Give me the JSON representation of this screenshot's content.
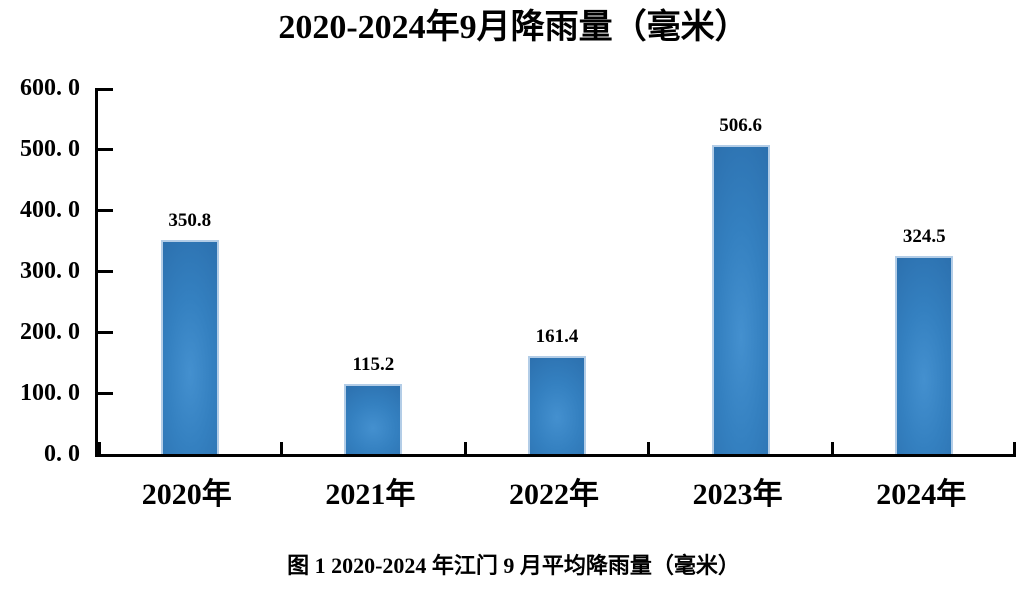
{
  "figure": {
    "background": "#ffffff",
    "caption": "图 1 2020-2024 年江门 9 月平均降雨量（毫米）"
  },
  "chart_data": {
    "type": "bar",
    "title": "2020-2024年9月降雨量（毫米）",
    "categories": [
      "2020年",
      "2021年",
      "2022年",
      "2023年",
      "2024年"
    ],
    "values": [
      350.8,
      115.2,
      161.4,
      506.6,
      324.5
    ],
    "value_labels": [
      "350.8",
      "115.2",
      "161.4",
      "506.6",
      "324.5"
    ],
    "xlabel": "",
    "ylabel": "",
    "ylim": [
      0,
      600
    ],
    "y_tick_step": 100,
    "y_tick_labels": [
      "0. 0",
      "100. 0",
      "200. 0",
      "300. 0",
      "400. 0",
      "500. 0",
      "600. 0"
    ],
    "grid": false,
    "legend": "none",
    "colors": {
      "bar_fill": "#3480c0",
      "bar_fill_light": "#4490cf",
      "bar_fill_dark": "#2c70ae",
      "bar_border": "#b3cde7",
      "axis": "#000000",
      "text": "#000000"
    }
  }
}
